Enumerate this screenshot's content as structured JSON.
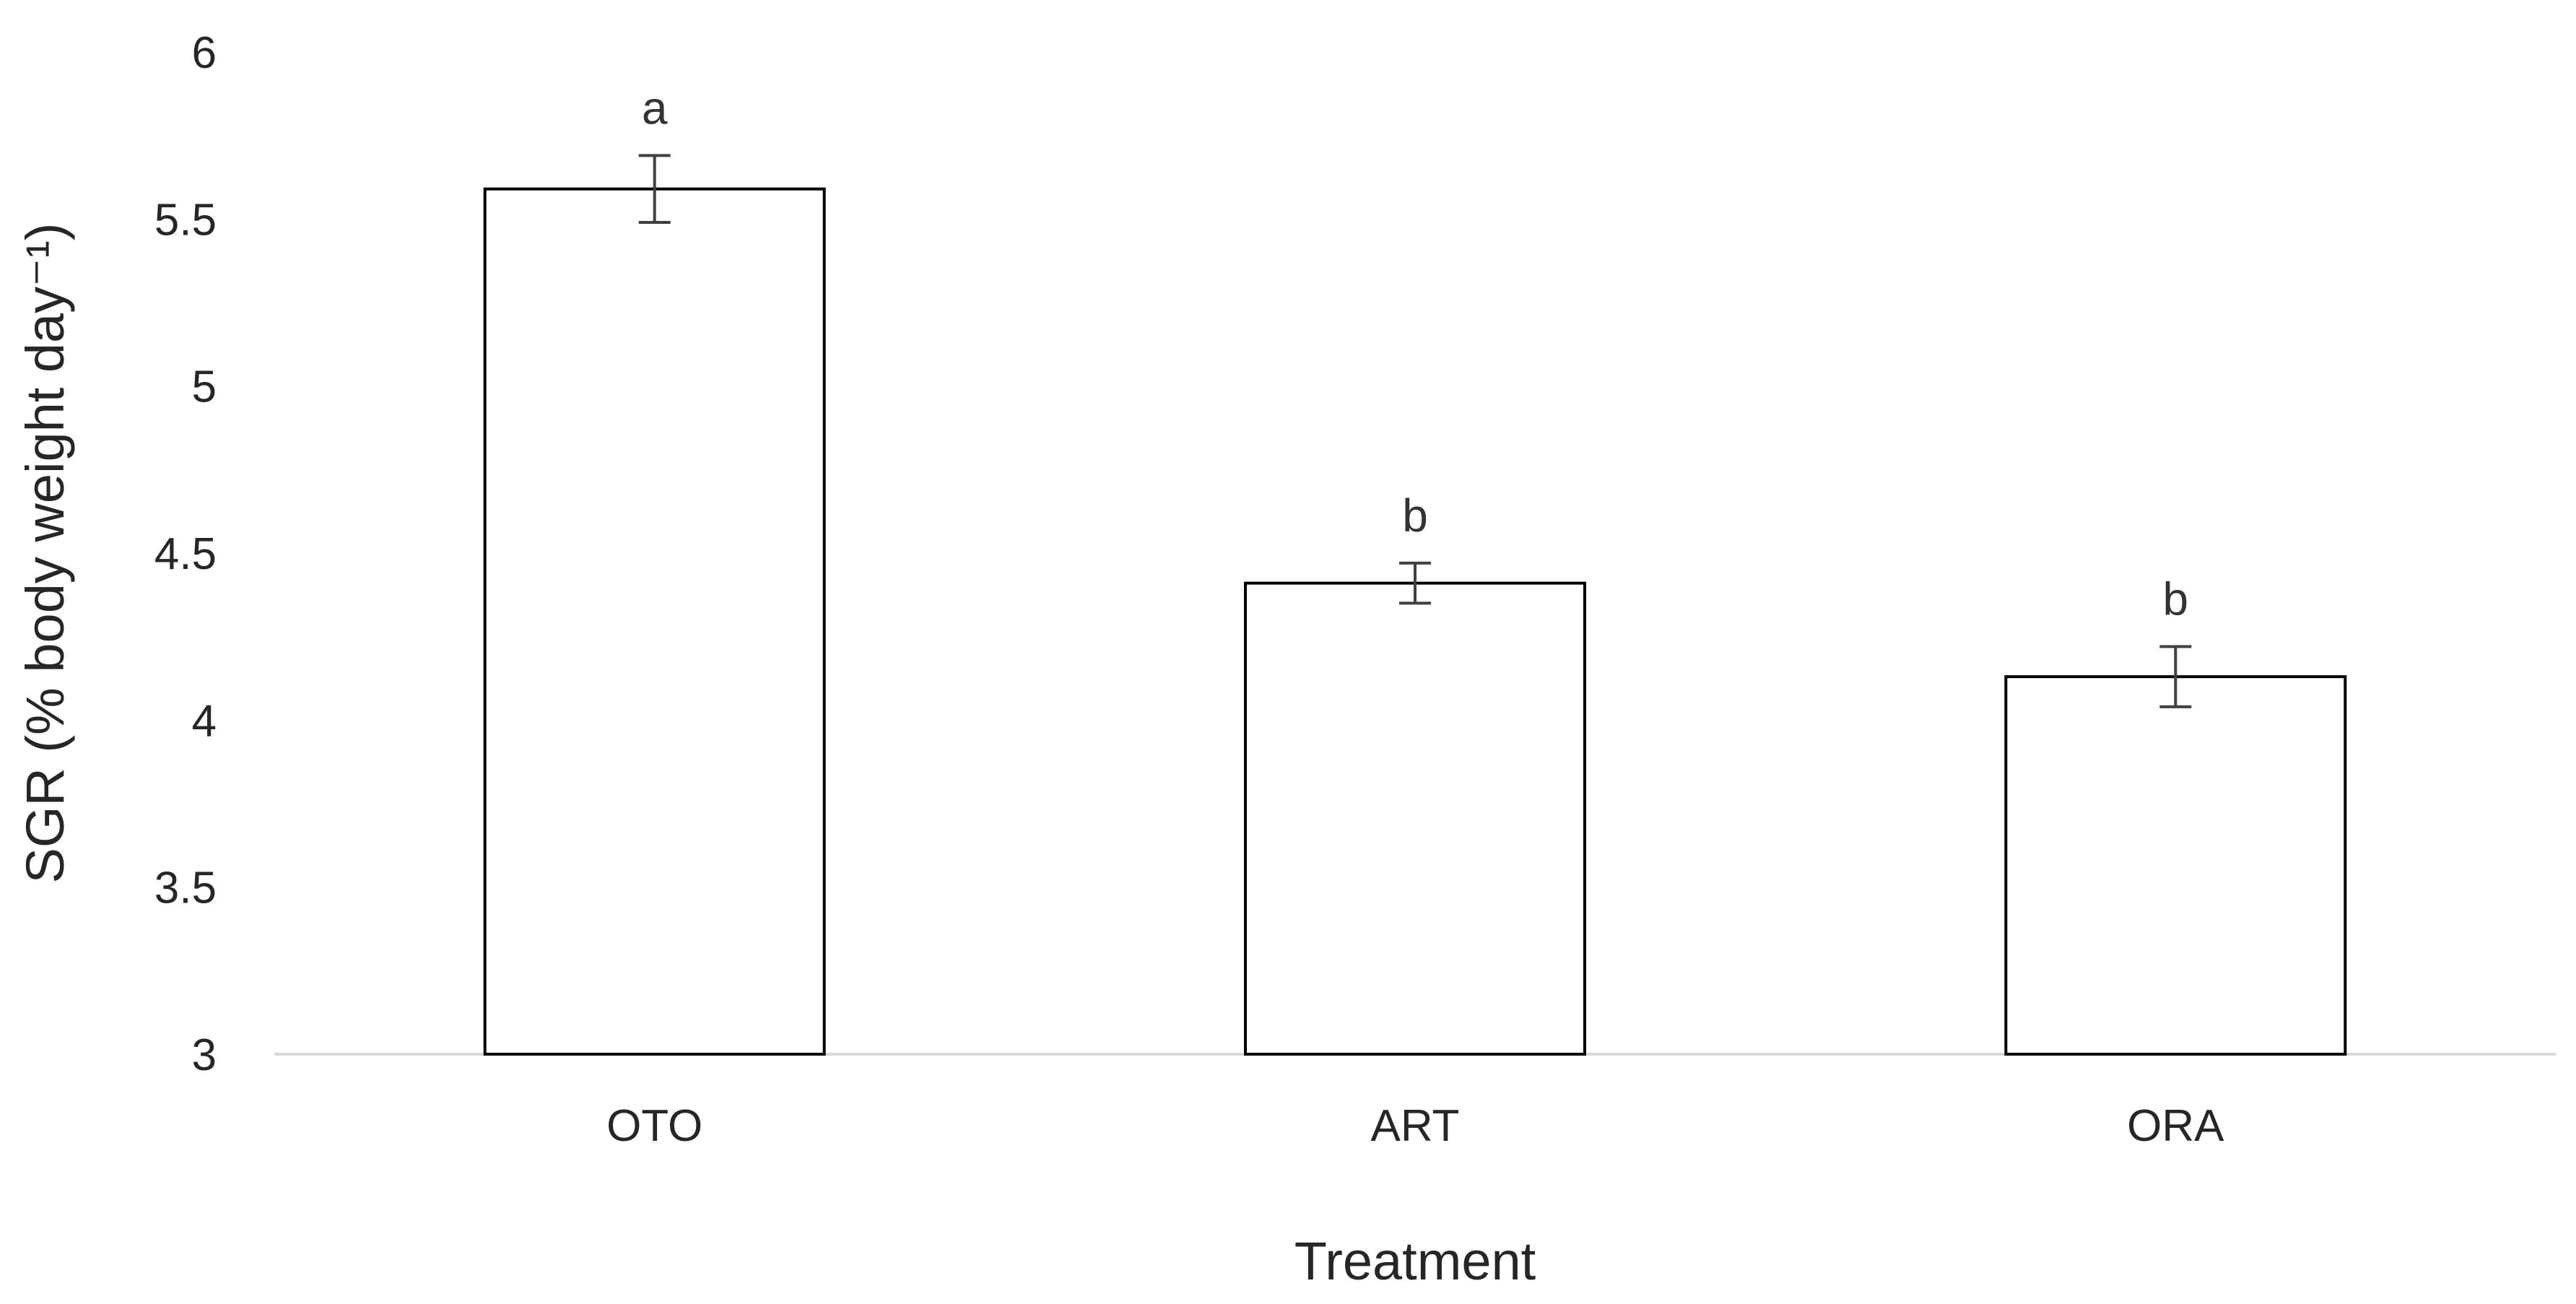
{
  "chart_data": {
    "type": "bar",
    "categories": [
      "OTO",
      "ART",
      "ORA"
    ],
    "values": [
      5.59,
      4.41,
      4.13
    ],
    "errors": [
      0.1,
      0.06,
      0.09
    ],
    "significance_labels": [
      "a",
      "b",
      "b"
    ],
    "title": "",
    "xlabel": "Treatment",
    "ylabel": "SGR (% body weight day⁻¹)",
    "ylim": [
      3,
      6
    ],
    "yticks": [
      3,
      3.5,
      4,
      4.5,
      5,
      5.5,
      6
    ],
    "ytick_labels": [
      "3",
      "3.5",
      "4",
      "4.5",
      "5",
      "5.5",
      "6"
    ],
    "grid": false,
    "legend": "none",
    "colors": {
      "bar_fill": "#ffffff",
      "bar_stroke": "#000000",
      "axis": "#d9d9d9",
      "error_bar": "#404040",
      "text": "#262626"
    }
  }
}
